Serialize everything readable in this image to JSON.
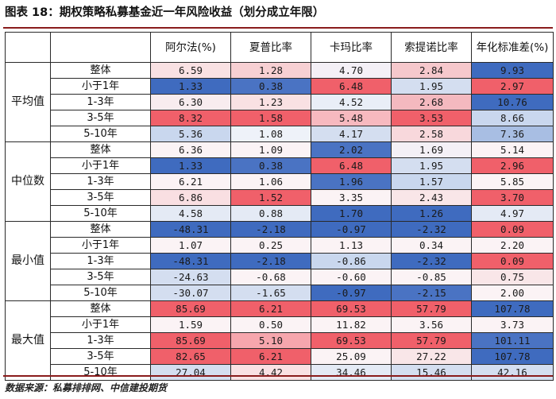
{
  "title": "图表 18：期权策略私募基金近一年风险收益（划分成立年限）",
  "source": "数据来源：私募排排网、中信建投期货",
  "colors": {
    "rule": "#8a1c1c"
  },
  "table": {
    "columns": [
      "阿尔法(%)",
      "夏普比率",
      "卡玛比率",
      "索提诺比率",
      "年化标准差(%)"
    ],
    "groups": [
      {
        "label": "平均值",
        "rows": [
          {
            "label": "整体",
            "values": [
              "6.59",
              "1.28",
              "4.70",
              "2.84",
              "9.93"
            ],
            "colors": [
              "#f9e1e3",
              "#f7d0d3",
              "#f4f0f6",
              "#f6c8cc",
              "#3f6bbf"
            ]
          },
          {
            "label": "小于1年",
            "values": [
              "1.33",
              "0.38",
              "6.48",
              "1.95",
              "2.97"
            ],
            "colors": [
              "#3f6bbf",
              "#4a73c3",
              "#f0606a",
              "#d4def0",
              "#f0606a"
            ]
          },
          {
            "label": "1-3年",
            "values": [
              "6.30",
              "1.23",
              "4.52",
              "2.68",
              "10.76"
            ],
            "colors": [
              "#f8ecef",
              "#f9e1e3",
              "#e9eef7",
              "#f4b9bf",
              "#3f6bbf"
            ]
          },
          {
            "label": "3-5年",
            "values": [
              "8.32",
              "1.58",
              "5.48",
              "3.53",
              "8.66"
            ],
            "colors": [
              "#f0606a",
              "#f0606a",
              "#f7b9bf",
              "#f0606a",
              "#c9d7ee"
            ]
          },
          {
            "label": "5-10年",
            "values": [
              "5.36",
              "1.08",
              "4.17",
              "2.58",
              "7.36"
            ],
            "colors": [
              "#c9d7ee",
              "#eef2f9",
              "#d4def0",
              "#f8d8dc",
              "#a8bee3"
            ]
          }
        ]
      },
      {
        "label": "中位数",
        "rows": [
          {
            "label": "整体",
            "values": [
              "6.36",
              "1.09",
              "2.02",
              "1.69",
              "5.14"
            ],
            "colors": [
              "#fbf3f5",
              "#fbf3f5",
              "#4a73c3",
              "#f4f0f6",
              "#fbf3f5"
            ]
          },
          {
            "label": "小于1年",
            "values": [
              "1.33",
              "0.38",
              "6.48",
              "1.95",
              "2.96"
            ],
            "colors": [
              "#3f6bbf",
              "#4a73c3",
              "#f0606a",
              "#d4def0",
              "#f0606a"
            ]
          },
          {
            "label": "1-3年",
            "values": [
              "6.21",
              "1.06",
              "1.96",
              "1.57",
              "5.85"
            ],
            "colors": [
              "#fbf3f5",
              "#fbf3f5",
              "#4a73c3",
              "#c9d7ee",
              "#fbf3f5"
            ]
          },
          {
            "label": "3-5年",
            "values": [
              "6.86",
              "1.52",
              "3.35",
              "2.43",
              "3.70"
            ],
            "colors": [
              "#f9dfe2",
              "#f0606a",
              "#fbf3f5",
              "#f9e6e8",
              "#f0606a"
            ]
          },
          {
            "label": "5-10年",
            "values": [
              "4.58",
              "0.88",
              "1.70",
              "1.26",
              "4.97"
            ],
            "colors": [
              "#e4eaf5",
              "#e4eaf5",
              "#3f6bbf",
              "#3f6bbf",
              "#e4eaf5"
            ]
          }
        ]
      },
      {
        "label": "最小值",
        "rows": [
          {
            "label": "整体",
            "values": [
              "-48.31",
              "-2.18",
              "-0.97",
              "-2.32",
              "0.09"
            ],
            "colors": [
              "#3f6bbf",
              "#3f6bbf",
              "#3f6bbf",
              "#3f6bbf",
              "#f0606a"
            ]
          },
          {
            "label": "小于1年",
            "values": [
              "1.07",
              "0.25",
              "1.13",
              "0.34",
              "2.20"
            ],
            "colors": [
              "#fbf3f5",
              "#fbf3f5",
              "#fbf3f5",
              "#fbf3f5",
              "#fbf3f5"
            ]
          },
          {
            "label": "1-3年",
            "values": [
              "-48.31",
              "-2.18",
              "-0.86",
              "-2.32",
              "0.09"
            ],
            "colors": [
              "#3f6bbf",
              "#3f6bbf",
              "#c9d7ee",
              "#3f6bbf",
              "#f0606a"
            ]
          },
          {
            "label": "3-5年",
            "values": [
              "-24.63",
              "-0.68",
              "-0.60",
              "-0.85",
              "0.75"
            ],
            "colors": [
              "#d4def0",
              "#fbf3f5",
              "#fbf3f5",
              "#fbf3f5",
              "#f9e6e8"
            ]
          },
          {
            "label": "5-10年",
            "values": [
              "-30.07",
              "-1.65",
              "-0.97",
              "-2.15",
              "2.00"
            ],
            "colors": [
              "#d4def0",
              "#d4def0",
              "#3f6bbf",
              "#4a73c3",
              "#fbf3f5"
            ]
          }
        ]
      },
      {
        "label": "最大值",
        "rows": [
          {
            "label": "整体",
            "values": [
              "85.69",
              "6.21",
              "69.53",
              "57.79",
              "107.78"
            ],
            "colors": [
              "#f0606a",
              "#f0606a",
              "#f0606a",
              "#f0606a",
              "#3f6bbf"
            ]
          },
          {
            "label": "小于1年",
            "values": [
              "1.59",
              "0.50",
              "11.82",
              "3.56",
              "3.73"
            ],
            "colors": [
              "#fbf3f5",
              "#fbf3f5",
              "#fbf3f5",
              "#fbf3f5",
              "#fbf3f5"
            ]
          },
          {
            "label": "1-3年",
            "values": [
              "85.69",
              "5.10",
              "69.53",
              "57.79",
              "101.11"
            ],
            "colors": [
              "#f0606a",
              "#f6a6ad",
              "#f0606a",
              "#f0606a",
              "#4a73c3"
            ]
          },
          {
            "label": "3-5年",
            "values": [
              "82.65",
              "6.21",
              "25.09",
              "27.22",
              "107.78"
            ],
            "colors": [
              "#f0606a",
              "#f0606a",
              "#fbf3f5",
              "#f9e6e8",
              "#3f6bbf"
            ]
          },
          {
            "label": "5-10年",
            "values": [
              "27.04",
              "4.42",
              "34.46",
              "15.46",
              "42.16"
            ],
            "colors": [
              "#d4def0",
              "#f9e1e3",
              "#e4eaf5",
              "#d4def0",
              "#d4def0"
            ]
          }
        ]
      }
    ]
  }
}
